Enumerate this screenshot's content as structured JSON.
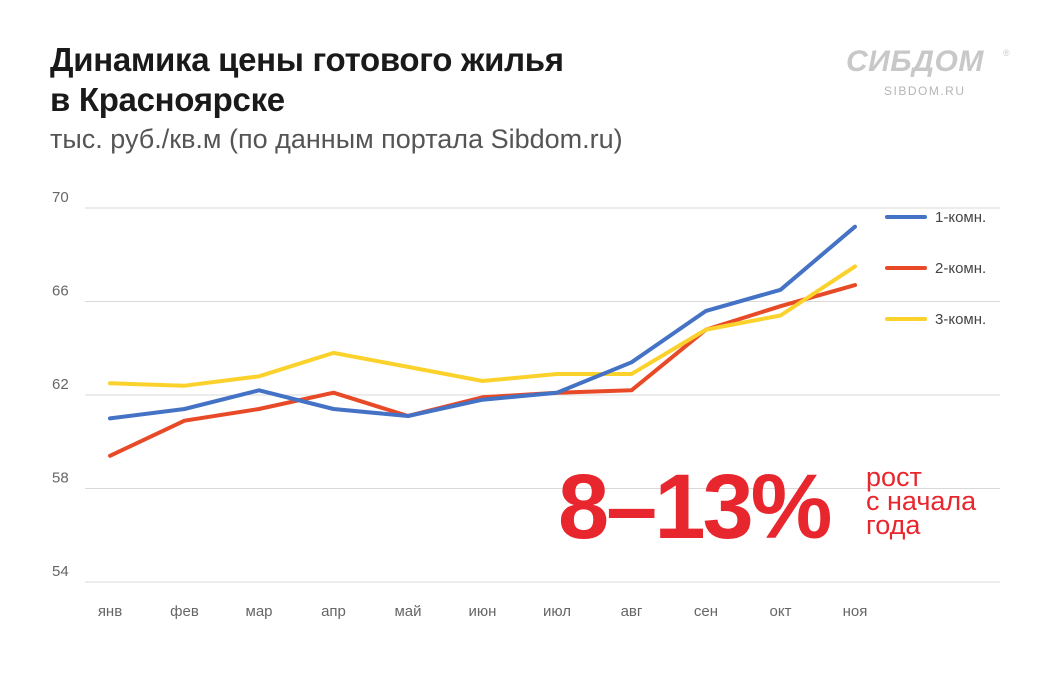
{
  "title_line1": "Динамика цены готового жилья",
  "title_line2": "в Красноярске",
  "subtitle": "тыс. руб./кв.м (по данным портала Sibdom.ru)",
  "logo": {
    "name": "СИБДОМ",
    "reg": "®",
    "url": "SIBDOM.RU"
  },
  "callout": {
    "value": "8–13%",
    "line1": "рост",
    "line2": "с начала",
    "line3": "года",
    "color": "#e8262d"
  },
  "chart_data": {
    "type": "line",
    "categories": [
      "янв",
      "фев",
      "мар",
      "апр",
      "май",
      "июн",
      "июл",
      "авг",
      "сен",
      "окт",
      "ноя"
    ],
    "yticks": [
      70,
      66,
      62,
      58,
      54
    ],
    "ylim": [
      54,
      70
    ],
    "grid": true,
    "legend_position": "top-right",
    "series": [
      {
        "name": "1-комн.",
        "color": "#4472c4",
        "values": [
          61.0,
          61.4,
          62.2,
          61.4,
          61.1,
          61.8,
          62.1,
          63.4,
          65.6,
          66.5,
          69.2
        ]
      },
      {
        "name": "2-комн.",
        "color": "#e84a27",
        "values": [
          59.4,
          60.9,
          61.4,
          62.1,
          61.1,
          61.9,
          62.1,
          62.2,
          64.8,
          65.8,
          66.7
        ]
      },
      {
        "name": "3-комн.",
        "color": "#fbd22c",
        "values": [
          62.5,
          62.4,
          62.8,
          63.8,
          63.2,
          62.6,
          62.9,
          62.9,
          64.8,
          65.4,
          67.5
        ]
      }
    ]
  }
}
